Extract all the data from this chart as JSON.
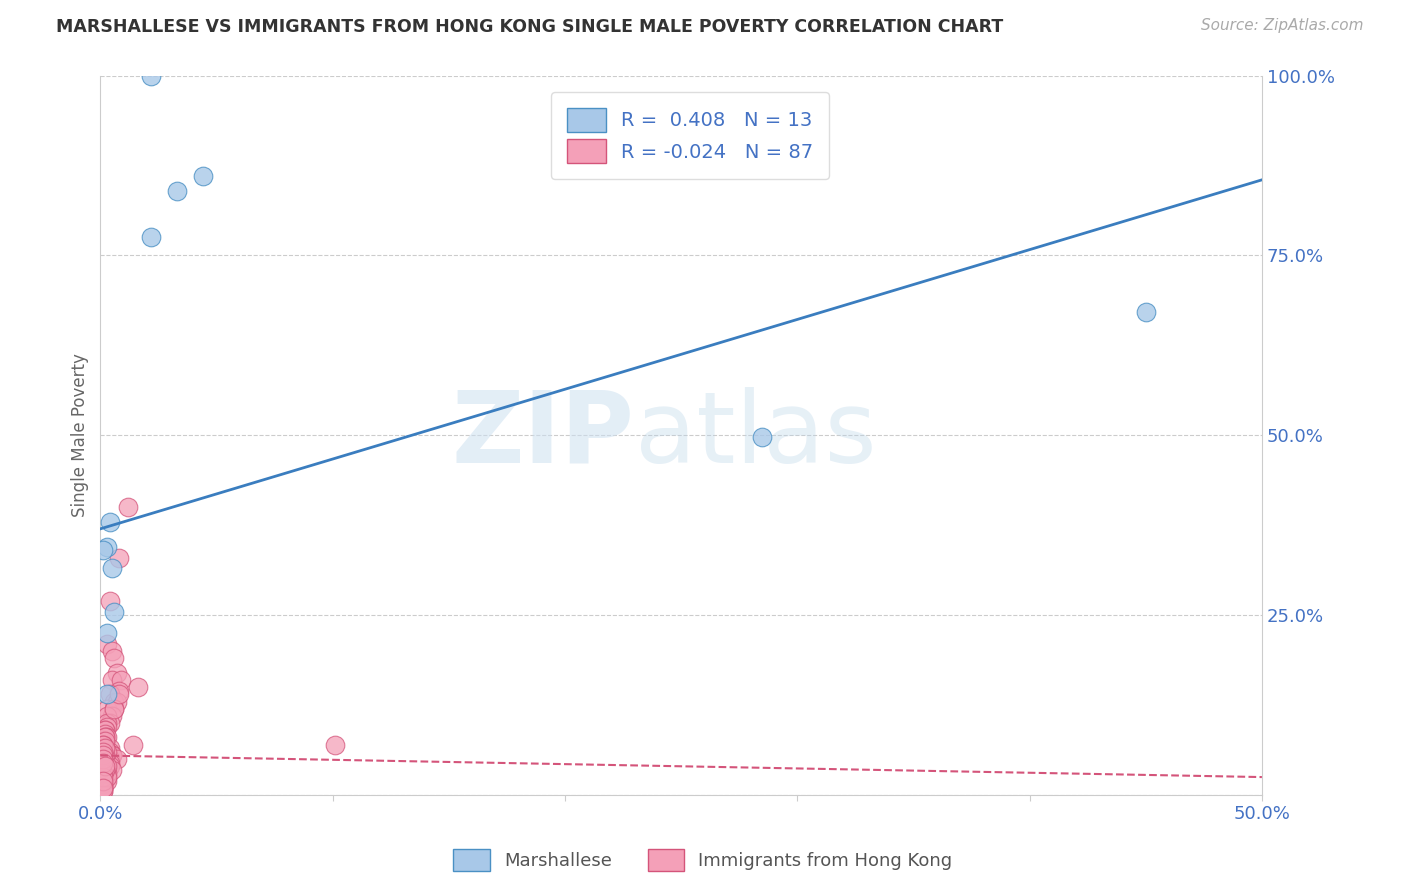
{
  "title": "MARSHALLESE VS IMMIGRANTS FROM HONG KONG SINGLE MALE POVERTY CORRELATION CHART",
  "source": "Source: ZipAtlas.com",
  "ylabel_label": "Single Male Poverty",
  "xlim": [
    0.0,
    0.5
  ],
  "ylim": [
    0.0,
    1.0
  ],
  "xticks": [
    0.0,
    0.1,
    0.2,
    0.3,
    0.4,
    0.5
  ],
  "xticklabels": [
    "0.0%",
    "",
    "",
    "",
    "",
    "50.0%"
  ],
  "yticks": [
    0.0,
    0.25,
    0.5,
    0.75,
    1.0
  ],
  "yticklabels": [
    "",
    "25.0%",
    "50.0%",
    "75.0%",
    "100.0%"
  ],
  "blue_R": 0.408,
  "blue_N": 13,
  "pink_R": -0.024,
  "pink_N": 87,
  "blue_color": "#a8c8e8",
  "pink_color": "#f4a0b8",
  "blue_edge_color": "#4a90c4",
  "pink_edge_color": "#d4547a",
  "blue_line_color": "#3a7dbf",
  "pink_line_color": "#d4547a",
  "legend_label_blue": "Marshallese",
  "legend_label_pink": "Immigrants from Hong Kong",
  "blue_line_x0": 0.0,
  "blue_line_y0": 0.37,
  "blue_line_x1": 0.5,
  "blue_line_y1": 0.855,
  "pink_line_x0": 0.0,
  "pink_line_y0": 0.055,
  "pink_line_x1": 0.5,
  "pink_line_y1": 0.025,
  "blue_scatter_x": [
    0.022,
    0.033,
    0.044,
    0.022,
    0.003,
    0.004,
    0.006,
    0.003,
    0.003,
    0.285,
    0.005,
    0.45,
    0.001
  ],
  "blue_scatter_y": [
    1.0,
    0.84,
    0.86,
    0.775,
    0.345,
    0.38,
    0.255,
    0.225,
    0.14,
    0.497,
    0.315,
    0.672,
    0.34
  ],
  "pink_scatter_x": [
    0.012,
    0.008,
    0.004,
    0.003,
    0.005,
    0.006,
    0.007,
    0.005,
    0.009,
    0.016,
    0.008,
    0.004,
    0.006,
    0.007,
    0.003,
    0.006,
    0.005,
    0.003,
    0.004,
    0.003,
    0.003,
    0.002,
    0.002,
    0.002,
    0.003,
    0.002,
    0.001,
    0.002,
    0.001,
    0.002,
    0.004,
    0.004,
    0.003,
    0.005,
    0.005,
    0.004,
    0.003,
    0.003,
    0.002,
    0.002,
    0.001,
    0.001,
    0.002,
    0.001,
    0.002,
    0.002,
    0.003,
    0.003,
    0.001,
    0.001,
    0.001,
    0.001,
    0.001,
    0.001,
    0.001,
    0.002,
    0.002,
    0.001,
    0.001,
    0.001,
    0.007,
    0.004,
    0.004,
    0.005,
    0.003,
    0.003,
    0.006,
    0.008,
    0.003,
    0.002,
    0.001,
    0.001,
    0.003,
    0.002,
    0.001,
    0.001,
    0.014,
    0.001,
    0.002,
    0.001,
    0.001,
    0.001,
    0.001,
    0.002,
    0.101,
    0.001,
    0.001
  ],
  "pink_scatter_y": [
    0.4,
    0.33,
    0.27,
    0.21,
    0.2,
    0.19,
    0.17,
    0.16,
    0.16,
    0.15,
    0.145,
    0.14,
    0.13,
    0.13,
    0.12,
    0.12,
    0.11,
    0.11,
    0.1,
    0.1,
    0.095,
    0.09,
    0.09,
    0.085,
    0.08,
    0.08,
    0.075,
    0.07,
    0.07,
    0.065,
    0.065,
    0.06,
    0.06,
    0.055,
    0.055,
    0.05,
    0.05,
    0.045,
    0.045,
    0.04,
    0.04,
    0.035,
    0.035,
    0.03,
    0.03,
    0.025,
    0.025,
    0.02,
    0.02,
    0.015,
    0.015,
    0.01,
    0.01,
    0.005,
    0.005,
    0.08,
    0.075,
    0.07,
    0.065,
    0.06,
    0.05,
    0.045,
    0.04,
    0.035,
    0.03,
    0.025,
    0.12,
    0.14,
    0.06,
    0.055,
    0.05,
    0.045,
    0.04,
    0.035,
    0.03,
    0.025,
    0.07,
    0.07,
    0.065,
    0.06,
    0.055,
    0.05,
    0.045,
    0.04,
    0.07,
    0.02,
    0.01
  ]
}
